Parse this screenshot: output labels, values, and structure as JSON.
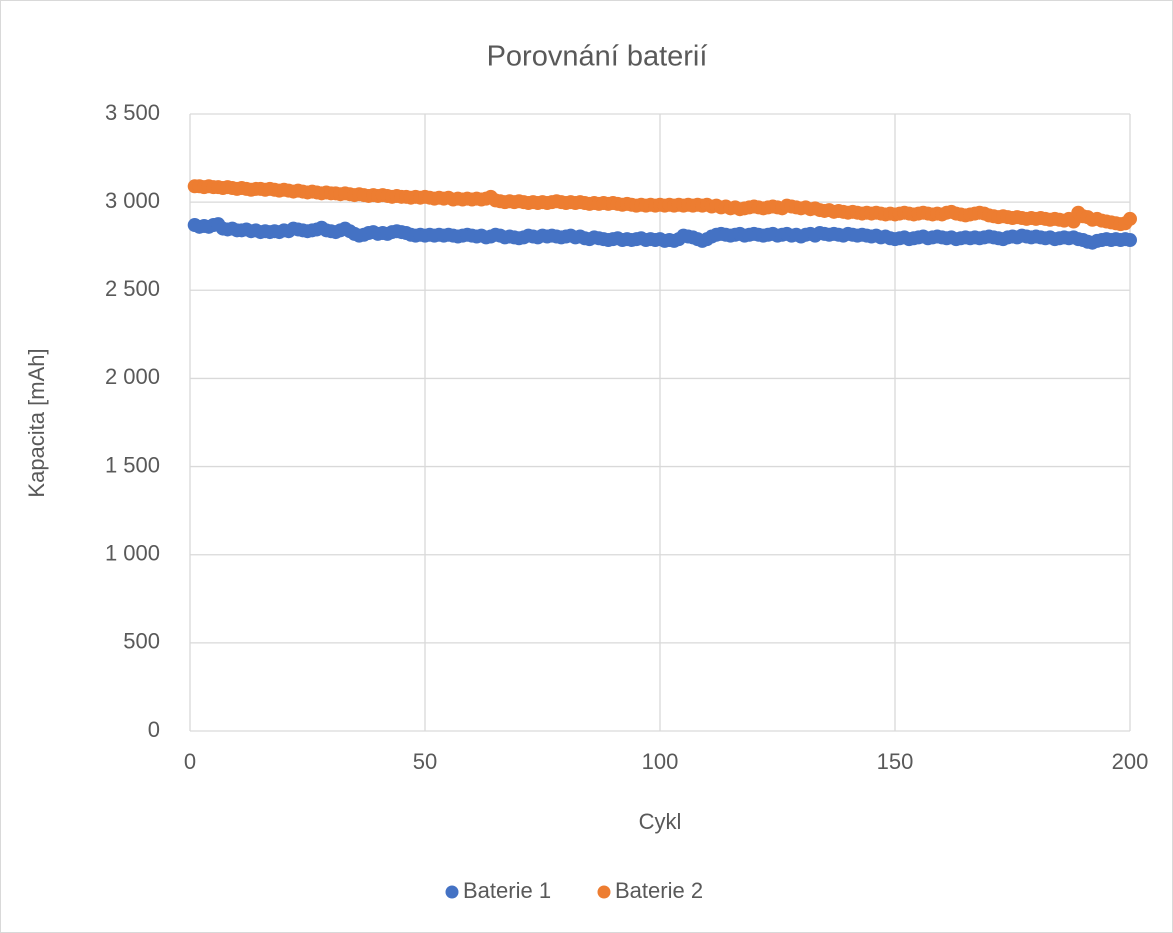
{
  "chart_data": {
    "type": "scatter",
    "title": "Porovnání baterií",
    "x_label": "Cykl",
    "y_label": "Kapacita [mAh]",
    "x": [
      1,
      2,
      3,
      4,
      5,
      6,
      7,
      8,
      9,
      10,
      11,
      12,
      13,
      14,
      15,
      16,
      17,
      18,
      19,
      20,
      21,
      22,
      23,
      24,
      25,
      26,
      27,
      28,
      29,
      30,
      31,
      32,
      33,
      34,
      35,
      36,
      37,
      38,
      39,
      40,
      41,
      42,
      43,
      44,
      45,
      46,
      47,
      48,
      49,
      50,
      51,
      52,
      53,
      54,
      55,
      56,
      57,
      58,
      59,
      60,
      61,
      62,
      63,
      64,
      65,
      66,
      67,
      68,
      69,
      70,
      71,
      72,
      73,
      74,
      75,
      76,
      77,
      78,
      79,
      80,
      81,
      82,
      83,
      84,
      85,
      86,
      87,
      88,
      89,
      90,
      91,
      92,
      93,
      94,
      95,
      96,
      97,
      98,
      99,
      100,
      101,
      102,
      103,
      104,
      105,
      106,
      107,
      108,
      109,
      110,
      111,
      112,
      113,
      114,
      115,
      116,
      117,
      118,
      119,
      120,
      121,
      122,
      123,
      124,
      125,
      126,
      127,
      128,
      129,
      130,
      131,
      132,
      133,
      134,
      135,
      136,
      137,
      138,
      139,
      140,
      141,
      142,
      143,
      144,
      145,
      146,
      147,
      148,
      149,
      150,
      151,
      152,
      153,
      154,
      155,
      156,
      157,
      158,
      159,
      160,
      161,
      162,
      163,
      164,
      165,
      166,
      167,
      168,
      169,
      170,
      171,
      172,
      173,
      174,
      175,
      176,
      177,
      178,
      179,
      180,
      181,
      182,
      183,
      184,
      185,
      186,
      187,
      188,
      189,
      190,
      191,
      192,
      193,
      194,
      195,
      196,
      197,
      198,
      199,
      200
    ],
    "series": [
      {
        "name": "Baterie 1",
        "color": "#4472c4",
        "values": [
          2870,
          2860,
          2865,
          2860,
          2870,
          2875,
          2850,
          2845,
          2850,
          2840,
          2840,
          2845,
          2835,
          2840,
          2830,
          2835,
          2830,
          2835,
          2830,
          2840,
          2835,
          2850,
          2845,
          2840,
          2835,
          2840,
          2845,
          2855,
          2840,
          2835,
          2830,
          2840,
          2850,
          2835,
          2820,
          2810,
          2815,
          2825,
          2830,
          2820,
          2825,
          2820,
          2830,
          2835,
          2830,
          2825,
          2815,
          2810,
          2815,
          2810,
          2815,
          2810,
          2815,
          2810,
          2815,
          2810,
          2805,
          2810,
          2815,
          2810,
          2805,
          2810,
          2800,
          2805,
          2815,
          2810,
          2800,
          2805,
          2800,
          2795,
          2800,
          2810,
          2805,
          2800,
          2810,
          2805,
          2810,
          2805,
          2800,
          2805,
          2810,
          2800,
          2805,
          2795,
          2790,
          2800,
          2795,
          2790,
          2785,
          2790,
          2795,
          2785,
          2790,
          2785,
          2790,
          2795,
          2785,
          2790,
          2785,
          2790,
          2780,
          2785,
          2780,
          2790,
          2810,
          2805,
          2800,
          2790,
          2780,
          2790,
          2805,
          2815,
          2820,
          2815,
          2810,
          2815,
          2820,
          2810,
          2815,
          2820,
          2815,
          2810,
          2815,
          2820,
          2810,
          2815,
          2820,
          2810,
          2815,
          2805,
          2815,
          2820,
          2810,
          2825,
          2820,
          2815,
          2820,
          2815,
          2810,
          2820,
          2815,
          2810,
          2815,
          2810,
          2805,
          2810,
          2800,
          2805,
          2795,
          2790,
          2795,
          2800,
          2790,
          2795,
          2800,
          2805,
          2795,
          2800,
          2805,
          2800,
          2795,
          2800,
          2790,
          2795,
          2800,
          2795,
          2800,
          2795,
          2800,
          2805,
          2800,
          2795,
          2790,
          2800,
          2805,
          2800,
          2810,
          2805,
          2800,
          2805,
          2800,
          2795,
          2800,
          2790,
          2795,
          2800,
          2795,
          2800,
          2790,
          2785,
          2775,
          2770,
          2780,
          2785,
          2790,
          2785,
          2790,
          2785,
          2790,
          2785
        ]
      },
      {
        "name": "Baterie 2",
        "color": "#ed7d31",
        "values": [
          3090,
          3090,
          3085,
          3090,
          3085,
          3085,
          3080,
          3085,
          3080,
          3075,
          3080,
          3075,
          3070,
          3075,
          3075,
          3070,
          3075,
          3070,
          3065,
          3070,
          3065,
          3060,
          3065,
          3060,
          3055,
          3060,
          3055,
          3050,
          3055,
          3050,
          3050,
          3045,
          3050,
          3045,
          3040,
          3045,
          3040,
          3035,
          3040,
          3035,
          3040,
          3035,
          3030,
          3035,
          3030,
          3030,
          3025,
          3030,
          3025,
          3030,
          3025,
          3020,
          3025,
          3020,
          3025,
          3015,
          3020,
          3015,
          3020,
          3015,
          3020,
          3015,
          3020,
          3030,
          3010,
          3005,
          3000,
          3005,
          3000,
          3005,
          3000,
          2995,
          3000,
          2995,
          3000,
          2995,
          3000,
          3005,
          3000,
          2995,
          3000,
          2995,
          3000,
          2995,
          2990,
          2995,
          2990,
          2995,
          2990,
          2995,
          2990,
          2985,
          2990,
          2985,
          2980,
          2985,
          2980,
          2985,
          2980,
          2985,
          2980,
          2985,
          2980,
          2985,
          2980,
          2985,
          2980,
          2985,
          2980,
          2985,
          2975,
          2980,
          2970,
          2975,
          2965,
          2970,
          2960,
          2965,
          2970,
          2975,
          2970,
          2965,
          2970,
          2975,
          2970,
          2965,
          2980,
          2975,
          2970,
          2965,
          2970,
          2960,
          2965,
          2955,
          2950,
          2955,
          2945,
          2950,
          2945,
          2940,
          2945,
          2940,
          2935,
          2940,
          2935,
          2940,
          2935,
          2930,
          2935,
          2930,
          2935,
          2940,
          2935,
          2930,
          2935,
          2940,
          2935,
          2930,
          2935,
          2930,
          2940,
          2945,
          2935,
          2930,
          2925,
          2930,
          2935,
          2940,
          2935,
          2925,
          2920,
          2915,
          2920,
          2915,
          2910,
          2915,
          2910,
          2905,
          2910,
          2905,
          2910,
          2905,
          2900,
          2905,
          2900,
          2895,
          2905,
          2890,
          2940,
          2920,
          2915,
          2900,
          2905,
          2895,
          2890,
          2885,
          2880,
          2875,
          2880,
          2905
        ]
      }
    ],
    "xlim": [
      0,
      200
    ],
    "xticks": [
      0,
      50,
      100,
      150,
      200
    ],
    "ylim": [
      0,
      3500
    ],
    "yticks": [
      0,
      500,
      {
        "value": 1000,
        "label": "1 000"
      },
      {
        "value": 1500,
        "label": "1 500"
      },
      {
        "value": 2000,
        "label": "2 000"
      },
      {
        "value": 2500,
        "label": "2 500"
      },
      {
        "value": 3000,
        "label": "3 000"
      },
      {
        "value": 3500,
        "label": "3 500"
      }
    ],
    "grid": true,
    "legend": "bottom"
  }
}
